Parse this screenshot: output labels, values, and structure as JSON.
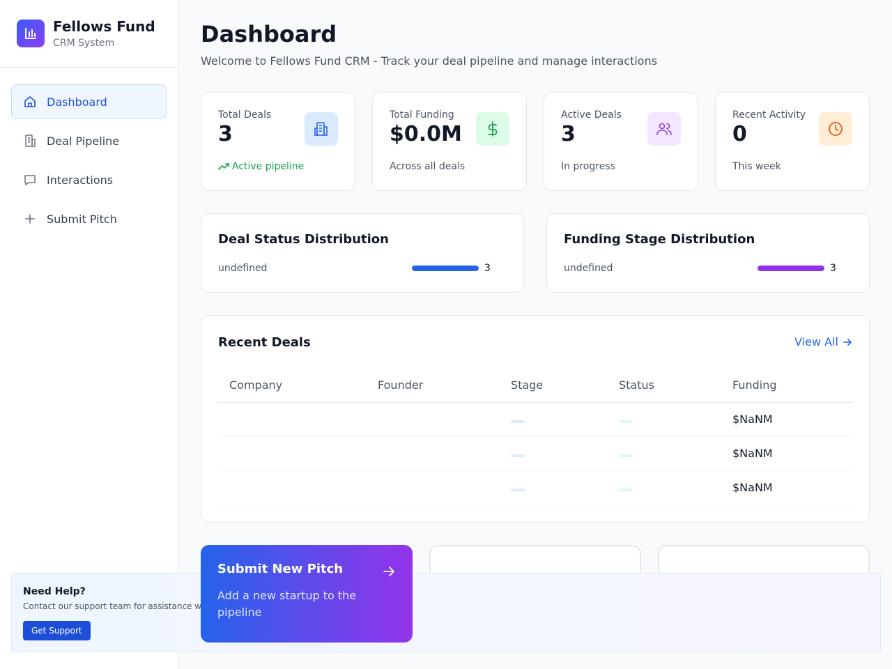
{
  "brand": {
    "title": "Fellows Fund",
    "subtitle": "CRM System"
  },
  "nav": {
    "items": [
      {
        "label": "Dashboard",
        "icon": "home-icon",
        "active": true
      },
      {
        "label": "Deal Pipeline",
        "icon": "building-icon",
        "active": false
      },
      {
        "label": "Interactions",
        "icon": "message-icon",
        "active": false
      },
      {
        "label": "Submit Pitch",
        "icon": "plus-icon",
        "active": false
      }
    ]
  },
  "header": {
    "title": "Dashboard",
    "subtitle": "Welcome to Fellows Fund CRM - Track your deal pipeline and manage interactions"
  },
  "stats": [
    {
      "label": "Total Deals",
      "value": "3",
      "foot": "Active pipeline",
      "icon": "building-icon",
      "color": "#2563eb",
      "bg": "#dbeafe"
    },
    {
      "label": "Total Funding",
      "value": "$0.0M",
      "foot": "Across all deals",
      "icon": "dollar-icon",
      "color": "#16a34a",
      "bg": "#dcfce7"
    },
    {
      "label": "Active Deals",
      "value": "3",
      "foot": "In progress",
      "icon": "users-icon",
      "color": "#9333ea",
      "bg": "#f3e8ff"
    },
    {
      "label": "Recent Activity",
      "value": "0",
      "foot": "This week",
      "icon": "clock-icon",
      "color": "#ea580c",
      "bg": "#ffedd5"
    }
  ],
  "distributions": [
    {
      "title": "Deal Status Distribution",
      "label": "undefined",
      "count": "3",
      "fill": 1.0,
      "color": "#2563eb"
    },
    {
      "title": "Funding Stage Distribution",
      "label": "undefined",
      "count": "3",
      "fill": 1.0,
      "color": "#9333ea"
    }
  ],
  "recent_deals": {
    "title": "Recent Deals",
    "view_all": "View All",
    "columns": [
      "Company",
      "Founder",
      "Stage",
      "Status",
      "Funding"
    ],
    "rows": [
      {
        "company": "",
        "founder": "",
        "funding": "$NaNM"
      },
      {
        "company": "",
        "founder": "",
        "funding": "$NaNM"
      },
      {
        "company": "",
        "founder": "",
        "funding": "$NaNM"
      }
    ]
  },
  "pitch_card": {
    "title": "Submit New Pitch",
    "description": "Add a new startup to the pipeline"
  },
  "help": {
    "title": "Need Help?",
    "text": "Contact our support team for assistance w",
    "button": "Get Support"
  },
  "colors": {
    "accent": "#2563eb",
    "brand_gradient_start": "#3b5bfd",
    "brand_gradient_end": "#8b3ff5"
  }
}
